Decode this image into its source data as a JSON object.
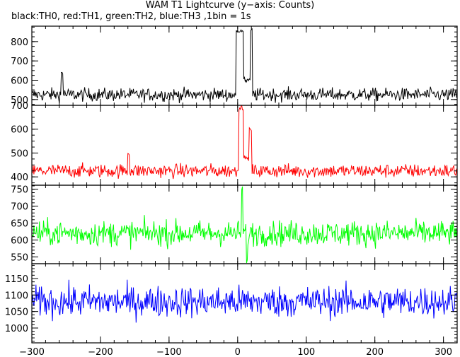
{
  "title": "WAM T1 Lightcurve (y−axis: Counts)",
  "subtitle": "black:TH0, red:TH1, green:TH2, blue:TH3 ,1bin = 1s",
  "chart_data": {
    "type": "line",
    "x_range": [
      -300,
      320
    ],
    "x_ticks": [
      -300,
      -200,
      -100,
      0,
      100,
      200,
      300
    ],
    "x_tick_labels": [
      "−300",
      "−200",
      "−100",
      "0",
      "100",
      "200",
      "300"
    ],
    "panels": [
      {
        "name": "TH0",
        "color": "#000000",
        "ylim": [
          470,
          880
        ],
        "y_ticks": [
          500,
          600,
          700,
          800
        ],
        "baseline": 525,
        "noise": 20,
        "features": [
          {
            "x": [
              -257,
              -255
            ],
            "y": 640
          },
          {
            "x": [
              -2,
              9
            ],
            "y": 860
          },
          {
            "x": [
              18,
              21
            ],
            "y": 860
          },
          {
            "x": [
              9,
              18
            ],
            "y": 600
          }
        ]
      },
      {
        "name": "TH1",
        "color": "#ff0000",
        "ylim": [
          365,
          700
        ],
        "y_ticks": [
          400,
          500,
          600,
          700
        ],
        "baseline": 425,
        "noise": 17,
        "features": [
          {
            "x": [
              -160,
              -158
            ],
            "y": 500
          },
          {
            "x": [
              2,
              9
            ],
            "y": 690
          },
          {
            "x": [
              16,
              20
            ],
            "y": 595
          },
          {
            "x": [
              9,
              16
            ],
            "y": 480
          }
        ]
      },
      {
        "name": "TH2",
        "color": "#00ff00",
        "ylim": [
          530,
          762
        ],
        "y_ticks": [
          550,
          600,
          650,
          700,
          750
        ],
        "baseline": 620,
        "noise": 22,
        "features": [
          {
            "x": [
              6,
              7
            ],
            "y": 760
          },
          {
            "x": [
              13,
              14
            ],
            "y": 530
          }
        ]
      },
      {
        "name": "TH3",
        "color": "#0000ff",
        "ylim": [
          955,
          1195
        ],
        "y_ticks": [
          1000,
          1050,
          1100,
          1150
        ],
        "baseline": 1080,
        "noise": 28,
        "features": []
      }
    ]
  }
}
